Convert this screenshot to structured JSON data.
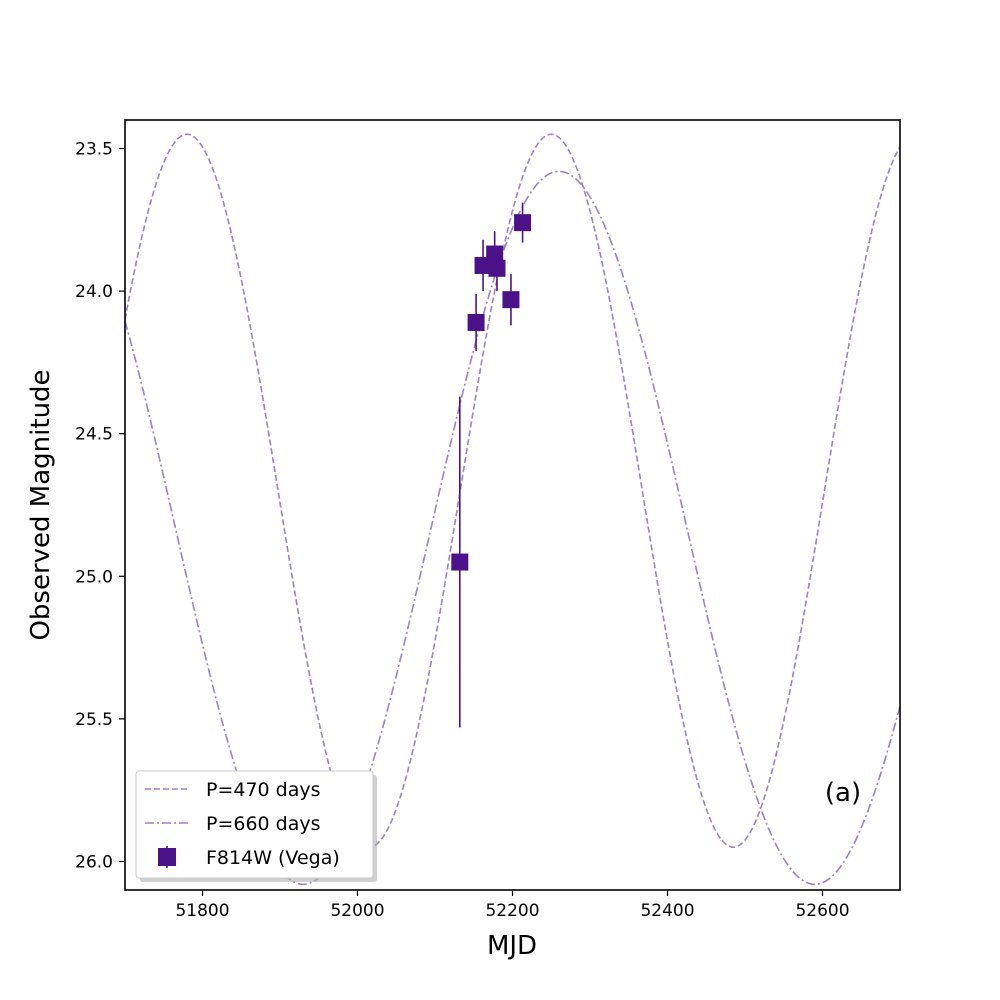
{
  "chart_data": {
    "type": "scatter",
    "title": "",
    "xlabel": "MJD",
    "ylabel": "Observed Magnitude",
    "xlim": [
      51700,
      52700
    ],
    "ylim": [
      26.1,
      23.4
    ],
    "y_inverted": true,
    "xticks": [
      51800,
      52000,
      52200,
      52400,
      52600
    ],
    "xtick_labels": [
      "51800",
      "52000",
      "52200",
      "52400",
      "52600"
    ],
    "yticks": [
      23.5,
      24.0,
      24.5,
      25.0,
      25.5,
      26.0
    ],
    "ytick_labels": [
      "23.5",
      "24.0",
      "24.5",
      "25.0",
      "25.5",
      "26.0"
    ],
    "grid": false,
    "annotation": "(a)",
    "legend_position": "lower-left",
    "colors": {
      "data": "#4b1289",
      "model": "#9d82c4"
    },
    "series": [
      {
        "name": "F814W (Vega)",
        "kind": "errorbar",
        "marker": "square",
        "points": [
          {
            "x": 52132,
            "y": 24.95,
            "yerr": 0.58
          },
          {
            "x": 52153,
            "y": 24.11,
            "yerr": 0.1
          },
          {
            "x": 52162,
            "y": 23.91,
            "yerr": 0.09
          },
          {
            "x": 52177,
            "y": 23.87,
            "yerr": 0.08
          },
          {
            "x": 52180,
            "y": 23.92,
            "yerr": 0.08
          },
          {
            "x": 52198,
            "y": 24.03,
            "yerr": 0.09
          },
          {
            "x": 52213,
            "y": 23.76,
            "yerr": 0.07
          }
        ]
      },
      {
        "name": "P=470 days",
        "kind": "sinusoid",
        "style": "dashed",
        "period": 470,
        "mean": 24.7,
        "amplitude": 1.25,
        "peak_mjd": 52250
      },
      {
        "name": "P=660 days",
        "kind": "sinusoid",
        "style": "dashdot",
        "period": 660,
        "mean": 24.83,
        "amplitude": 1.25,
        "peak_mjd": 52260
      }
    ],
    "legend": [
      "P=470 days",
      "P=660 days",
      "F814W (Vega)"
    ]
  }
}
